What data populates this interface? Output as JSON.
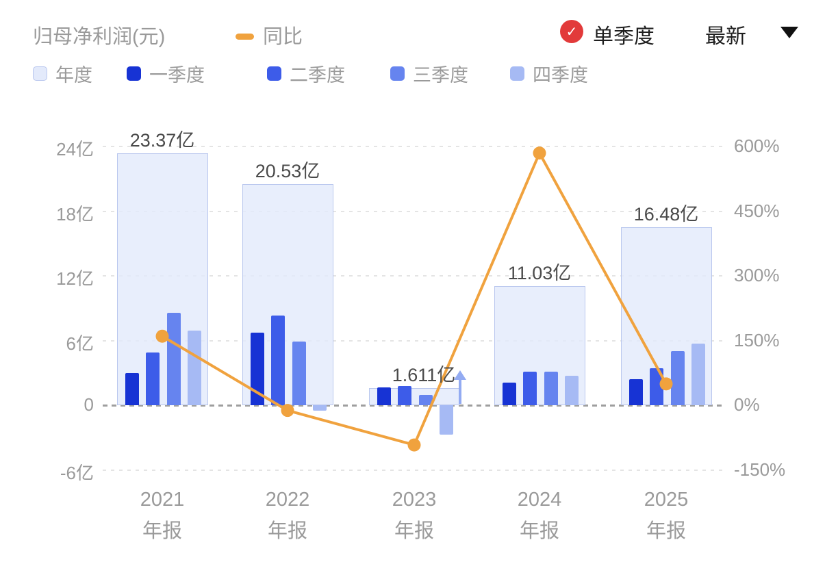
{
  "header": {
    "title": "归母净利润(元)",
    "yoy_label": "同比",
    "quarter_mode_label": "单季度",
    "latest_label": "最新",
    "check_icon": "red-circle-check",
    "caret_icon": "black-down-triangle"
  },
  "legend": {
    "items": [
      {
        "label": "年度",
        "color": "#e3eafb",
        "border": "#b9c7ee"
      },
      {
        "label": "一季度",
        "color": "#1733d4"
      },
      {
        "label": "二季度",
        "color": "#3d5ce9"
      },
      {
        "label": "三季度",
        "color": "#6684ef"
      },
      {
        "label": "四季度",
        "color": "#a6baf4"
      }
    ]
  },
  "colors": {
    "line": "#f0a23e",
    "annual_fill": "#e3eafb",
    "annual_border": "#b9c7ee",
    "quarters": [
      "#1733d4",
      "#3d5ce9",
      "#6684ef",
      "#a6baf4"
    ],
    "red_badge": "#e23a3a",
    "axis_text": "#9a9a9a",
    "value_text": "#4a4a4a",
    "arrow": "#93abf2"
  },
  "chart_data": {
    "type": "bar+line",
    "title": "归母净利润(元)",
    "legend_entries": [
      "年度",
      "一季度",
      "二季度",
      "三季度",
      "四季度",
      "同比"
    ],
    "x_axis": {
      "years": [
        "2021",
        "2022",
        "2023",
        "2024",
        "2025"
      ],
      "period": "年报"
    },
    "left_axis": {
      "unit": "亿",
      "ticks": [
        "24亿",
        "18亿",
        "12亿",
        "6亿",
        "0",
        "-6亿"
      ],
      "values": [
        24,
        18,
        12,
        6,
        0,
        -6
      ]
    },
    "right_axis": {
      "unit": "%",
      "ticks": [
        "600%",
        "450%",
        "300%",
        "150%",
        "0%",
        "-150%"
      ],
      "values": [
        600,
        450,
        300,
        150,
        0,
        -150
      ]
    },
    "annual_series": {
      "name": "年度",
      "values": [
        23.37,
        20.53,
        1.611,
        11.03,
        16.48
      ],
      "labels": [
        "23.37亿",
        "20.53亿",
        "1.611亿",
        "11.03亿",
        "16.48亿"
      ]
    },
    "quarter_series": [
      {
        "name": "一季度",
        "values": [
          3.0,
          6.7,
          1.66,
          2.1,
          2.4
        ]
      },
      {
        "name": "二季度",
        "values": [
          4.9,
          8.3,
          1.78,
          3.1,
          3.4
        ]
      },
      {
        "name": "三季度",
        "values": [
          8.6,
          5.9,
          0.93,
          3.1,
          5.0
        ]
      },
      {
        "name": "四季度",
        "values": [
          6.9,
          -0.5,
          -2.76,
          2.7,
          5.7
        ]
      }
    ],
    "yoy_series": {
      "name": "同比",
      "unit": "%",
      "values": [
        160,
        -12.2,
        -92.2,
        584.7,
        49.4
      ]
    },
    "label_dx": [
      0,
      0,
      14,
      0,
      0
    ],
    "arrow_group_index": 2
  }
}
